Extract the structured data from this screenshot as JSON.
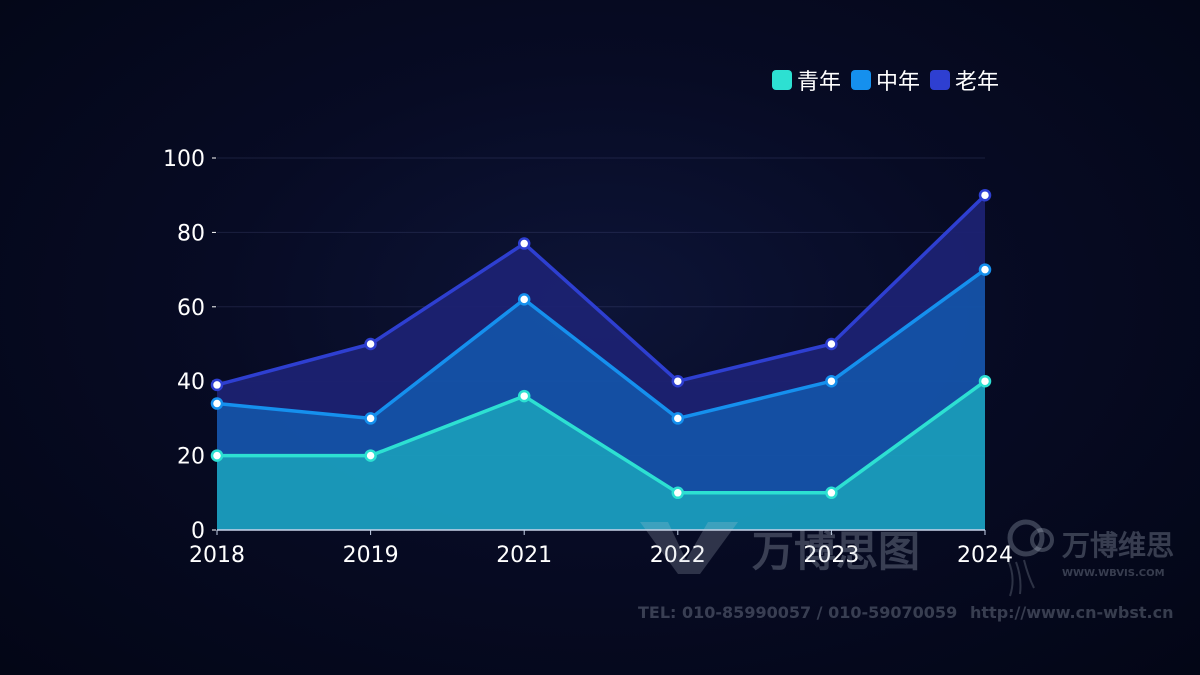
{
  "legend": [
    {
      "label": "青年",
      "color": "#2de0d2"
    },
    {
      "label": "中年",
      "color": "#1590ee"
    },
    {
      "label": "老年",
      "color": "#2e3fd1"
    }
  ],
  "watermark": {
    "brand_main": "万博思图",
    "brand_right": "万博维思",
    "site_small": "WWW.WBVIS.COM",
    "tel": "TEL: 010-85990057 / 010-59070059",
    "url": "http://www.cn-wbst.cn"
  },
  "chart_data": {
    "type": "area",
    "stacked": true,
    "categories": [
      "2018",
      "2019",
      "2021",
      "2022",
      "2023",
      "2024"
    ],
    "series": [
      {
        "name": "青年",
        "values": [
          20,
          20,
          36,
          10,
          10,
          40
        ],
        "color": "#2de0d2",
        "fill": "#1a9ec0"
      },
      {
        "name": "中年",
        "values": [
          14,
          10,
          26,
          20,
          30,
          30
        ],
        "color": "#1590ee",
        "fill": "#1553aa"
      },
      {
        "name": "老年",
        "values": [
          5,
          20,
          15,
          10,
          10,
          20
        ],
        "color": "#2e3fd1",
        "fill": "#1c2272"
      }
    ],
    "ylim": [
      0,
      100
    ],
    "yticks": [
      0,
      20,
      40,
      60,
      80,
      100
    ],
    "grid": true,
    "legend_position": "top-right"
  }
}
